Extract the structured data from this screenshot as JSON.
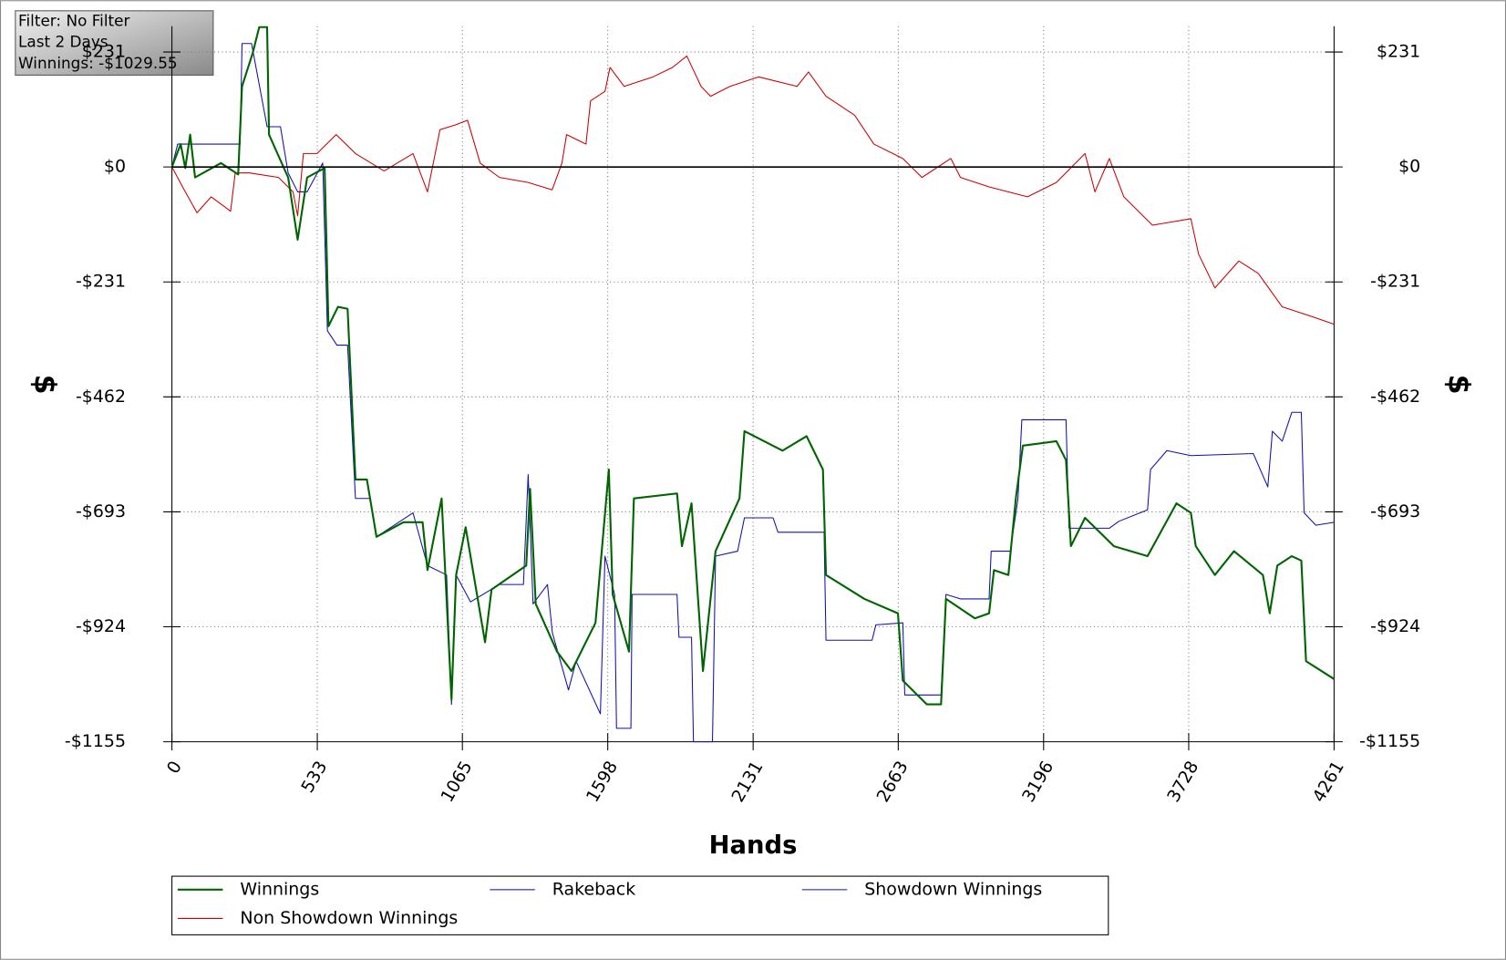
{
  "info_box": {
    "filter": "Filter: No Filter",
    "period": "Last 2 Days",
    "winnings": "Winnings: -$1029.55"
  },
  "chart_data": {
    "type": "line",
    "xlabel": "Hands",
    "ylabel": "$",
    "xlim": [
      0,
      4261
    ],
    "xticks": [
      0,
      533,
      1065,
      1598,
      2131,
      2663,
      3196,
      3728,
      4261
    ],
    "ylim": [
      -1155,
      283
    ],
    "yticks": [
      {
        "value": 231,
        "label": "$231"
      },
      {
        "value": 0,
        "label": "$0"
      },
      {
        "value": -231,
        "label": "-$231"
      },
      {
        "value": -462,
        "label": "-$462"
      },
      {
        "value": -693,
        "label": "-$693"
      },
      {
        "value": -924,
        "label": "-$924"
      },
      {
        "value": -1155,
        "label": "-$1155"
      }
    ],
    "grid": true,
    "legend": "bottom",
    "series": [
      {
        "name": "Winnings",
        "color": "#006400",
        "x": [
          0,
          32,
          49,
          67,
          85,
          180,
          243,
          257,
          296,
          320,
          349,
          356,
          426,
          461,
          496,
          560,
          574,
          609,
          644,
          673,
          715,
          750,
          849,
          919,
          937,
          989,
          1025,
          1042,
          1077,
          1148,
          1172,
          1299,
          1313,
          1334,
          1412,
          1465,
          1553,
          1602,
          1616,
          1676,
          1694,
          1852,
          1870,
          1905,
          1947,
          1993,
          2081,
          2099,
          2239,
          2327,
          2387,
          2398,
          2539,
          2662,
          2680,
          2768,
          2820,
          2838,
          2944,
          2996,
          3014,
          3067,
          3095,
          3120,
          3243,
          3278,
          3296,
          3348,
          3454,
          3577,
          3683,
          3736,
          3754,
          3824,
          3894,
          4000,
          4025,
          4053,
          4106,
          4141,
          4158,
          4261
        ],
        "values": [
          0,
          46,
          -2,
          65,
          -21,
          8,
          -15,
          162,
          229,
          281,
          281,
          65,
          -21,
          -146,
          -21,
          -2,
          -320,
          -281,
          -285,
          -628,
          -628,
          -743,
          -714,
          -714,
          -810,
          -666,
          -1070,
          -820,
          -724,
          -955,
          -849,
          -801,
          -647,
          -878,
          -974,
          -1013,
          -916,
          -608,
          -859,
          -974,
          -666,
          -656,
          -762,
          -676,
          -1013,
          -772,
          -666,
          -531,
          -570,
          -541,
          -608,
          -820,
          -868,
          -897,
          -1032,
          -1080,
          -1080,
          -868,
          -907,
          -897,
          -810,
          -820,
          -662,
          -560,
          -551,
          -589,
          -762,
          -705,
          -762,
          -782,
          -676,
          -695,
          -762,
          -820,
          -772,
          -820,
          -897,
          -801,
          -782,
          -791,
          -993,
          -1029
        ]
      },
      {
        "name": "Rakeback",
        "color": "#0000aa",
        "x": [
          0,
          4261
        ],
        "values": [
          0,
          0
        ]
      },
      {
        "name": "Showdown Winnings",
        "color": "#1010b0",
        "x": [
          0,
          21,
          74,
          180,
          250,
          257,
          292,
          349,
          398,
          426,
          461,
          496,
          553,
          570,
          605,
          644,
          673,
          726,
          750,
          884,
          937,
          1007,
          1025,
          1042,
          1095,
          1201,
          1289,
          1306,
          1324,
          1377,
          1395,
          1454,
          1482,
          1571,
          1588,
          1623,
          1630,
          1683,
          1687,
          1852,
          1859,
          1905,
          1912,
          1982,
          1993,
          2074,
          2099,
          2204,
          2222,
          2391,
          2398,
          2567,
          2581,
          2680,
          2687,
          2820,
          2838,
          2891,
          2996,
          3004,
          3074,
          3102,
          3116,
          3278,
          3289,
          3437,
          3472,
          3577,
          3588,
          3648,
          3736,
          3965,
          4018,
          4035,
          4071,
          4106,
          4141,
          4151,
          4194,
          4261
        ],
        "values": [
          0,
          46,
          46,
          46,
          46,
          248,
          248,
          81,
          81,
          -12,
          -50,
          -50,
          8,
          -329,
          -358,
          -358,
          -666,
          -666,
          -743,
          -695,
          -801,
          -820,
          -1080,
          -820,
          -874,
          -839,
          -839,
          -618,
          -878,
          -839,
          -936,
          -1051,
          -993,
          -1099,
          -782,
          -859,
          -1128,
          -1128,
          -859,
          -859,
          -945,
          -945,
          -1155,
          -1155,
          -782,
          -772,
          -705,
          -705,
          -734,
          -734,
          -951,
          -951,
          -920,
          -916,
          -1061,
          -1061,
          -859,
          -868,
          -868,
          -772,
          -772,
          -666,
          -508,
          -508,
          -726,
          -726,
          -712,
          -689,
          -608,
          -570,
          -580,
          -576,
          -643,
          -531,
          -551,
          -493,
          -493,
          -695,
          -720,
          -714
        ]
      },
      {
        "name": "Non Showdown Winnings",
        "color": "#cc0000",
        "x": [
          0,
          39,
          92,
          144,
          215,
          232,
          285,
          391,
          444,
          461,
          482,
          532,
          602,
          673,
          778,
          884,
          937,
          983,
          1042,
          1084,
          1130,
          1201,
          1306,
          1394,
          1430,
          1447,
          1518,
          1535,
          1588,
          1606,
          1658,
          1764,
          1835,
          1888,
          1940,
          1975,
          2046,
          2151,
          2292,
          2334,
          2398,
          2503,
          2574,
          2680,
          2750,
          2856,
          2891,
          2996,
          3137,
          3243,
          3348,
          3384,
          3437,
          3490,
          3595,
          3736,
          3764,
          3824,
          3912,
          3983,
          4071,
          4176,
          4261
        ],
        "values": [
          0,
          -40,
          -92,
          -60,
          -89,
          -12,
          -12,
          -21,
          -50,
          -98,
          27,
          27,
          65,
          27,
          -8,
          27,
          -50,
          75,
          85,
          94,
          8,
          -21,
          -31,
          -46,
          8,
          65,
          46,
          133,
          152,
          200,
          162,
          181,
          200,
          223,
          162,
          142,
          162,
          181,
          162,
          191,
          142,
          104,
          46,
          17,
          -21,
          17,
          -21,
          -40,
          -60,
          -31,
          27,
          -50,
          17,
          -60,
          -117,
          -104,
          -175,
          -243,
          -189,
          -214,
          -281,
          -300,
          -316
        ]
      }
    ]
  }
}
